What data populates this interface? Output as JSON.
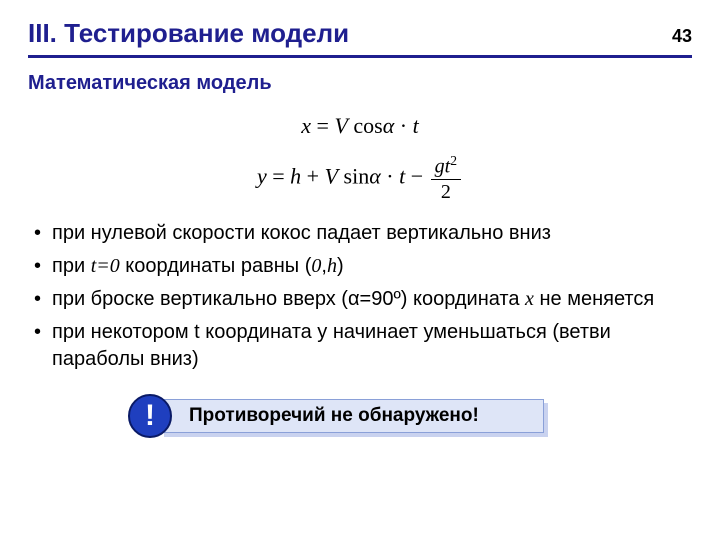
{
  "page_number": "43",
  "title": "III. Тестирование модели",
  "subtitle": "Математическая модель",
  "equations": {
    "eq1_html": "<span class='it'>x</span> = <span class='it'>V</span> cos<span class='it'>α</span> · <span class='it'>t</span>",
    "eq2_prefix_html": "<span class='it'>y</span> = <span class='it'>h</span> + <span class='it'>V</span> sin<span class='it'>α</span> · <span class='it'>t</span> − ",
    "eq2_frac_num_html": "<span class='it'>gt</span><sup>2</sup>",
    "eq2_frac_den_html": "2"
  },
  "bullets": [
    {
      "html": "при нулевой скорости кокос падает вертикально вниз"
    },
    {
      "html": "при <span class='serif-it'>t=0</span> координаты равны (<span class='serif-it'>0</span>,<span class='serif-it'>h</span>)"
    },
    {
      "html": "при броске вертикально вверх (α=90º) координата <span class='serif-it'>x</span> не меняется"
    },
    {
      "html": "при некотором t координата y начинает уменьшаться (ветви параболы вниз)"
    }
  ],
  "callout": {
    "badge": "!",
    "text": "Противоречий не обнаружено!"
  },
  "colors": {
    "heading": "#1f1f8f",
    "rule": "#1f1f8f",
    "callout_bg": "#dee5f7",
    "callout_shadow": "#c9d2ef",
    "callout_border": "#8aa0d8",
    "badge_fill": "#1f3fbf",
    "badge_border": "#0a1a66",
    "text": "#000000",
    "background": "#ffffff"
  }
}
